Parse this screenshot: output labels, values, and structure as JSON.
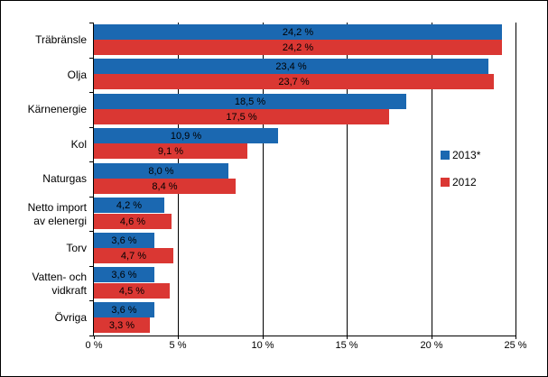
{
  "chart_data": {
    "type": "bar",
    "orientation": "horizontal",
    "title": "",
    "categories": [
      "Träbränsle",
      "Olja",
      "Kärnenergie",
      "Kol",
      "Naturgas",
      "Netto import\nav elenergi",
      "Torv",
      "Vatten- och\nvidkraft",
      "Övriga"
    ],
    "series": [
      {
        "name": "2013*",
        "color": "#1b68b1",
        "values": [
          24.2,
          23.4,
          18.5,
          10.9,
          8.0,
          4.2,
          3.6,
          3.6,
          3.6
        ],
        "labels": [
          "24,2 %",
          "23,4 %",
          "18,5 %",
          "10,9 %",
          "8,0 %",
          "4,2 %",
          "3,6 %",
          "3,6 %",
          "3,6 %"
        ]
      },
      {
        "name": "2012",
        "color": "#da3733",
        "values": [
          24.2,
          23.7,
          17.5,
          9.1,
          8.4,
          4.6,
          4.7,
          4.5,
          3.3
        ],
        "labels": [
          "24,2 %",
          "23,7 %",
          "17,5 %",
          "9,1 %",
          "8,4 %",
          "4,6 %",
          "4,7 %",
          "4,5 %",
          "3,3 %"
        ]
      }
    ],
    "xlim": [
      0,
      25
    ],
    "xticks": [
      {
        "value": 0,
        "label": "0 %"
      },
      {
        "value": 5,
        "label": "5 %"
      },
      {
        "value": 10,
        "label": "10 %"
      },
      {
        "value": 15,
        "label": "15 %"
      },
      {
        "value": 20,
        "label": "20 %"
      },
      {
        "value": 25,
        "label": "25 %"
      }
    ],
    "grid": "vertical",
    "legend_position": "right-middle",
    "value_label_color": "#000000",
    "axis_color": "#000000"
  }
}
